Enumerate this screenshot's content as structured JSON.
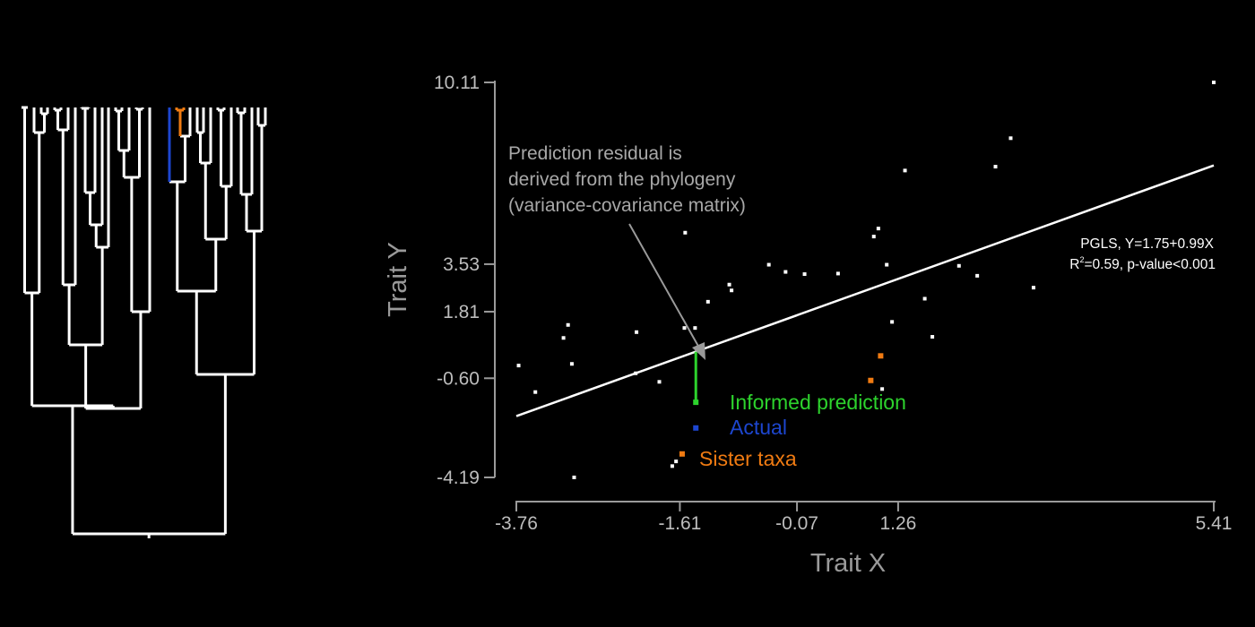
{
  "chart_data": {
    "type": "scatter",
    "xlabel": "Trait X",
    "ylabel": "Trait Y",
    "xlim": [
      -3.76,
      5.41
    ],
    "ylim": [
      -4.19,
      10.11
    ],
    "x_ticks": [
      -3.76,
      -1.61,
      -0.07,
      1.26,
      5.41
    ],
    "x_tick_labels": [
      "-3.76",
      "-1.61",
      "-0.07",
      "1.26",
      "5.41"
    ],
    "y_ticks": [
      10.11,
      3.53,
      1.81,
      -0.6,
      -4.19
    ],
    "y_tick_labels": [
      "10.11",
      "3.53",
      "1.81",
      "-0.60",
      "-4.19"
    ],
    "points": [
      {
        "x": -3.73,
        "y": -0.14
      },
      {
        "x": -3.51,
        "y": -1.1
      },
      {
        "x": -3.14,
        "y": 0.86
      },
      {
        "x": -3.08,
        "y": 1.33
      },
      {
        "x": -3.03,
        "y": -0.08
      },
      {
        "x": -3.0,
        "y": -4.19
      },
      {
        "x": -2.18,
        "y": 1.07
      },
      {
        "x": -2.19,
        "y": -0.42
      },
      {
        "x": -1.88,
        "y": -0.73
      },
      {
        "x": -1.71,
        "y": -3.78
      },
      {
        "x": -1.66,
        "y": -3.61
      },
      {
        "x": -1.54,
        "y": 4.67
      },
      {
        "x": -1.55,
        "y": 1.22
      },
      {
        "x": -1.41,
        "y": 1.22
      },
      {
        "x": -1.24,
        "y": 2.17
      },
      {
        "x": -0.96,
        "y": 2.79
      },
      {
        "x": -0.93,
        "y": 2.58
      },
      {
        "x": -0.44,
        "y": 3.51
      },
      {
        "x": -0.22,
        "y": 3.25
      },
      {
        "x": 0.03,
        "y": 3.17
      },
      {
        "x": 0.47,
        "y": 3.19
      },
      {
        "x": 0.94,
        "y": 4.53
      },
      {
        "x": 1.0,
        "y": 4.82
      },
      {
        "x": 1.11,
        "y": 3.51
      },
      {
        "x": 1.05,
        "y": -0.99
      },
      {
        "x": 1.18,
        "y": 1.44
      },
      {
        "x": 1.35,
        "y": 6.92
      },
      {
        "x": 1.61,
        "y": 2.28
      },
      {
        "x": 1.71,
        "y": 0.9
      },
      {
        "x": 2.06,
        "y": 3.47
      },
      {
        "x": 2.3,
        "y": 3.11
      },
      {
        "x": 2.54,
        "y": 7.06
      },
      {
        "x": 2.74,
        "y": 8.09
      },
      {
        "x": 3.04,
        "y": 2.68
      },
      {
        "x": 5.41,
        "y": 10.11
      }
    ],
    "highlight_points": [
      {
        "label": "Informed prediction",
        "x": -1.4,
        "y": -1.47,
        "color": "#2dd32d"
      },
      {
        "label": "Actual",
        "x": -1.4,
        "y": -2.4,
        "color": "#1d46cf"
      },
      {
        "label": "Sister taxa",
        "x": -1.58,
        "y": -3.34,
        "color": "#f07b12"
      },
      {
        "label": "Sister taxa",
        "x": 0.9,
        "y": -0.68,
        "color": "#f07b12"
      },
      {
        "label": "Sister taxa",
        "x": 1.03,
        "y": 0.21,
        "color": "#f07b12"
      }
    ],
    "regression": {
      "label": "PGLS",
      "intercept": 1.75,
      "slope": 0.99,
      "r2": 0.59,
      "x_from": -3.76,
      "x_to": 5.41,
      "color": "#ffffff"
    },
    "residual_segment": {
      "x": -1.4,
      "y_from": 0.36,
      "y_to": -1.47,
      "color": "#2dd32d"
    },
    "annotation": {
      "lines": [
        "Prediction residual is",
        "derived from the phylogeny",
        "(variance-covariance matrix)"
      ],
      "arrow_color": "#9a9a9a"
    },
    "equation": {
      "line1": "PGLS, Y=1.75+0.99X",
      "r2_prefix": "R",
      "r2_sup": "2",
      "r2_rest": "=0.59, p-value<0.001"
    },
    "legend_labels": {
      "informed": "Informed prediction",
      "actual": "Actual",
      "sister": "Sister taxa"
    },
    "phylogeny": {
      "leaf_count": 37,
      "leaf_highlight": [
        {
          "leaf_index": 22,
          "color": "#1d46cf"
        },
        {
          "leaf_index": 23,
          "color": "#f07b12"
        },
        {
          "leaf_index": 24,
          "color": "#f07b12"
        }
      ]
    }
  }
}
